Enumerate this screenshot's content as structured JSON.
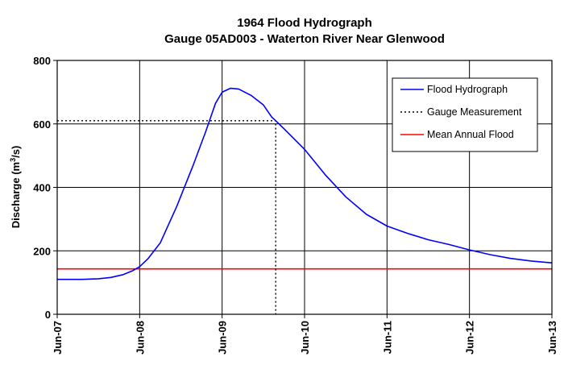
{
  "chart_data": {
    "type": "line",
    "title": "1964 Flood Hydrograph",
    "subtitle": "Gauge 05AD003 - Waterton River Near Glenwood",
    "ylabel_main": "Discharge (m",
    "ylabel_sup": "3",
    "ylabel_tail": "/s)",
    "xlabel": "",
    "x_categories": [
      "Jun-07",
      "Jun-08",
      "Jun-09",
      "Jun-10",
      "Jun-11",
      "Jun-12",
      "Jun-13"
    ],
    "xlim": [
      0,
      6
    ],
    "ylim": [
      0,
      800
    ],
    "yticks": [
      0,
      200,
      400,
      600,
      800
    ],
    "grid": true,
    "legend_position": "top-right",
    "series": [
      {
        "name": "Flood Hydrograph",
        "color": "#0000ff",
        "style": "solid",
        "x": [
          0,
          0.3,
          0.5,
          0.65,
          0.8,
          0.92,
          1.0,
          1.1,
          1.25,
          1.45,
          1.65,
          1.8,
          1.92,
          2.0,
          2.1,
          2.2,
          2.35,
          2.5,
          2.6,
          2.65,
          2.75,
          3.0,
          3.25,
          3.5,
          3.75,
          4.0,
          4.25,
          4.5,
          4.75,
          5.0,
          5.25,
          5.5,
          5.75,
          6.0
        ],
        "y": [
          110,
          110,
          112,
          116,
          125,
          138,
          150,
          175,
          225,
          340,
          470,
          575,
          665,
          700,
          712,
          710,
          690,
          660,
          622,
          610,
          585,
          520,
          440,
          370,
          315,
          278,
          255,
          235,
          220,
          203,
          188,
          176,
          168,
          162
        ]
      },
      {
        "name": "Gauge Measurement",
        "color": "#000000",
        "style": "dotted",
        "x": [
          0,
          2.65,
          2.65
        ],
        "y": [
          610,
          610,
          0
        ]
      },
      {
        "name": "Mean Annual Flood",
        "color": "#ff0000",
        "style": "solid",
        "x": [
          0,
          6
        ],
        "y": [
          143,
          143
        ]
      }
    ]
  }
}
